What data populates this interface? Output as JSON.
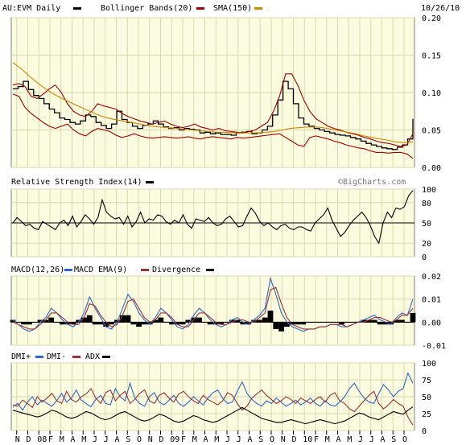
{
  "colors": {
    "background": "#ffffff",
    "plot_bg": "#fbfbe0",
    "grid": "#d8d8b0",
    "price": "#000000",
    "bollinger": "#990000",
    "sma": "#cc8800",
    "macd": "#3366cc",
    "macd_ema": "#993333",
    "divergence": "#000000",
    "dmi_plus": "#3366cc",
    "dmi_minus": "#993333",
    "adx": "#000000",
    "rsi": "#000000",
    "frame": "#808080"
  },
  "header": {
    "symbol_label": "AU:EVM Daily",
    "bollinger_label": "Bollinger Bands(20)",
    "sma_label": "SMA(150)",
    "date_label": "10/26/10",
    "watermark": "©BigCharts.com"
  },
  "chart_data": [
    {
      "type": "line",
      "panel": "price",
      "title": "AU:EVM Daily",
      "series": [
        {
          "name": "AU:EVM Daily",
          "x_start": 0.0,
          "values": [
            0.105,
            0.108,
            0.115,
            0.104,
            0.096,
            0.092,
            0.085,
            0.078,
            0.073,
            0.066,
            0.064,
            0.06,
            0.058,
            0.062,
            0.07,
            0.068,
            0.06,
            0.056,
            0.052,
            0.058,
            0.075,
            0.064,
            0.06,
            0.055,
            0.052,
            0.056,
            0.058,
            0.062,
            0.058,
            0.054,
            0.052,
            0.053,
            0.05,
            0.052,
            0.051,
            0.05,
            0.046,
            0.047,
            0.045,
            0.046,
            0.044,
            0.044,
            0.043,
            0.046,
            0.047,
            0.048,
            0.045,
            0.046,
            0.05,
            0.055,
            0.07,
            0.09,
            0.115,
            0.105,
            0.085,
            0.066,
            0.058,
            0.055,
            0.052,
            0.05,
            0.048,
            0.046,
            0.044,
            0.043,
            0.042,
            0.04,
            0.038,
            0.035,
            0.032,
            0.03,
            0.028,
            0.026,
            0.025,
            0.024,
            0.027,
            0.03,
            0.038,
            0.065
          ]
        },
        {
          "name": "Bollinger Bands(20)",
          "x_start": 0.0,
          "values": [
            0.11,
            0.112,
            0.108,
            0.095,
            0.092,
            0.098,
            0.105,
            0.11,
            0.1,
            0.085,
            0.075,
            0.07,
            0.068,
            0.075,
            0.085,
            0.082,
            0.08,
            0.078,
            0.072,
            0.068,
            0.065,
            0.062,
            0.06,
            0.058,
            0.06,
            0.062,
            0.058,
            0.055,
            0.053,
            0.055,
            0.058,
            0.054,
            0.052,
            0.05,
            0.052,
            0.049,
            0.048,
            0.047,
            0.046,
            0.048,
            0.05,
            0.055,
            0.06,
            0.075,
            0.095,
            0.125,
            0.125,
            0.11,
            0.09,
            0.075,
            0.065,
            0.06,
            0.055,
            0.052,
            0.05,
            0.047,
            0.045,
            0.043,
            0.04,
            0.038,
            0.035,
            0.033,
            0.032,
            0.03,
            0.028,
            0.03,
            0.045
          ]
        },
        {
          "name": "Bollinger Lower",
          "x_start": 0.0,
          "values": [
            0.098,
            0.095,
            0.08,
            0.072,
            0.066,
            0.06,
            0.055,
            0.052,
            0.055,
            0.058,
            0.05,
            0.045,
            0.042,
            0.048,
            0.052,
            0.05,
            0.048,
            0.043,
            0.04,
            0.042,
            0.045,
            0.042,
            0.04,
            0.039,
            0.04,
            0.041,
            0.04,
            0.039,
            0.04,
            0.041,
            0.039,
            0.038,
            0.04,
            0.041,
            0.04,
            0.039,
            0.038,
            0.04,
            0.039,
            0.04,
            0.041,
            0.042,
            0.043,
            0.044,
            0.045,
            0.04,
            0.035,
            0.03,
            0.028,
            0.04,
            0.042,
            0.04,
            0.038,
            0.035,
            0.033,
            0.03,
            0.028,
            0.026,
            0.025,
            0.022,
            0.02,
            0.02,
            0.019,
            0.02,
            0.02,
            0.018,
            0.012
          ]
        },
        {
          "name": "SMA(150)",
          "x_start": 0.0,
          "values": [
            0.14,
            0.132,
            0.122,
            0.113,
            0.105,
            0.098,
            0.092,
            0.087,
            0.082,
            0.077,
            0.072,
            0.068,
            0.065,
            0.063,
            0.061,
            0.059,
            0.057,
            0.055,
            0.054,
            0.053,
            0.052,
            0.051,
            0.05,
            0.049,
            0.048,
            0.047,
            0.047,
            0.046,
            0.046,
            0.046,
            0.046,
            0.047,
            0.048,
            0.05,
            0.052,
            0.053,
            0.054,
            0.054,
            0.053,
            0.051,
            0.049,
            0.047,
            0.045,
            0.042,
            0.04,
            0.038,
            0.036,
            0.034,
            0.033,
            0.034
          ]
        }
      ],
      "ylim": [
        0,
        0.2
      ],
      "yticks": [
        "0.00",
        "0.05",
        "0.10",
        "0.15",
        "0.20"
      ],
      "grid": true
    },
    {
      "type": "line",
      "panel": "rsi",
      "title": "Relative Strength Index(14)",
      "series": [
        {
          "name": "Relative Strength Index(14)",
          "values": [
            50,
            58,
            52,
            46,
            48,
            42,
            40,
            52,
            48,
            44,
            40,
            50,
            54,
            46,
            60,
            44,
            52,
            62,
            56,
            48,
            58,
            84,
            66,
            60,
            56,
            58,
            48,
            60,
            44,
            52,
            66,
            50,
            56,
            54,
            62,
            60,
            52,
            48,
            54,
            50,
            62,
            48,
            42,
            56,
            54,
            52,
            58,
            50,
            46,
            48,
            56,
            60,
            52,
            44,
            46,
            60,
            72,
            64,
            52,
            46,
            50,
            44,
            40,
            46,
            48,
            42,
            40,
            44,
            44,
            40,
            38,
            50,
            56,
            62,
            72,
            54,
            42,
            30,
            36,
            46,
            54,
            60,
            66,
            58,
            46,
            30,
            20,
            50,
            66,
            58,
            72,
            70,
            74,
            90,
            98
          ]
        }
      ],
      "ylim": [
        0,
        100
      ],
      "yticks": [
        "0",
        "20",
        "50",
        "80",
        "100"
      ],
      "grid": true
    },
    {
      "type": "line",
      "panel": "macd",
      "series": [
        {
          "name": "MACD(12,26)",
          "values": [
            0.001,
            -0.001,
            -0.003,
            -0.004,
            -0.003,
            0.0,
            0.002,
            0.006,
            0.004,
            0.001,
            -0.001,
            -0.002,
            0.0,
            0.004,
            0.011,
            0.006,
            0.002,
            -0.002,
            -0.003,
            0.0,
            0.006,
            0.012,
            0.009,
            0.004,
            0.001,
            -0.001,
            0.002,
            0.006,
            0.004,
            0.001,
            -0.002,
            -0.003,
            -0.001,
            0.003,
            0.006,
            0.004,
            0.001,
            -0.001,
            -0.002,
            -0.001,
            0.001,
            0.002,
            0.0,
            -0.001,
            0.001,
            0.003,
            0.006,
            0.019,
            0.012,
            0.004,
            0.0,
            -0.002,
            -0.003,
            -0.004,
            -0.003,
            -0.003,
            -0.002,
            -0.002,
            -0.001,
            -0.001,
            -0.002,
            -0.002,
            -0.001,
            0.0,
            0.001,
            0.002,
            0.003,
            0.001,
            0.0,
            -0.001,
            0.002,
            0.004,
            0.003,
            0.01
          ]
        },
        {
          "name": "MACD EMA(9)",
          "values": [
            0.0,
            -0.001,
            -0.002,
            -0.003,
            -0.003,
            -0.001,
            0.001,
            0.004,
            0.004,
            0.002,
            0.0,
            -0.001,
            -0.001,
            0.002,
            0.008,
            0.007,
            0.003,
            0.0,
            -0.002,
            -0.001,
            0.003,
            0.009,
            0.01,
            0.006,
            0.002,
            0.0,
            0.001,
            0.004,
            0.004,
            0.002,
            -0.001,
            -0.002,
            -0.002,
            0.001,
            0.004,
            0.004,
            0.002,
            0.0,
            -0.001,
            -0.001,
            0.0,
            0.001,
            0.001,
            0.0,
            0.0,
            0.002,
            0.004,
            0.014,
            0.015,
            0.008,
            0.002,
            -0.001,
            -0.002,
            -0.003,
            -0.003,
            -0.003,
            -0.002,
            -0.002,
            -0.001,
            -0.001,
            -0.001,
            -0.002,
            -0.001,
            0.0,
            0.0,
            0.001,
            0.002,
            0.002,
            0.001,
            0.0,
            0.001,
            0.003,
            0.003,
            0.006
          ]
        }
      ],
      "divergence": [
        0.001,
        0.0,
        -0.001,
        -0.001,
        0.0,
        0.001,
        0.001,
        0.002,
        0.0,
        -0.001,
        -0.001,
        -0.001,
        0.001,
        0.002,
        0.003,
        -0.001,
        -0.001,
        -0.002,
        -0.001,
        0.001,
        0.003,
        0.003,
        -0.001,
        -0.002,
        -0.001,
        -0.001,
        0.001,
        0.002,
        0.0,
        -0.001,
        -0.001,
        -0.001,
        0.001,
        0.002,
        0.002,
        0.0,
        -0.001,
        -0.001,
        -0.001,
        0.0,
        0.001,
        0.001,
        -0.001,
        -0.001,
        0.001,
        0.001,
        0.002,
        0.005,
        -0.003,
        -0.004,
        -0.002,
        -0.001,
        -0.001,
        -0.001,
        0.0,
        0.0,
        0.0,
        0.0,
        0.0,
        0.0,
        -0.001,
        0.0,
        0.0,
        0.0,
        0.001,
        0.001,
        0.001,
        -0.001,
        -0.001,
        -0.001,
        0.001,
        0.001,
        0.0,
        0.004
      ],
      "ylim": [
        -0.01,
        0.02
      ],
      "yticks": [
        "-0.01",
        "0.00",
        "0.01",
        "0.02"
      ],
      "grid": true
    },
    {
      "type": "line",
      "panel": "dmi",
      "series": [
        {
          "name": "DMI+",
          "values": [
            35,
            40,
            30,
            42,
            50,
            38,
            45,
            40,
            36,
            44,
            55,
            42,
            48,
            60,
            45,
            40,
            35,
            46,
            52,
            40,
            38,
            62,
            50,
            44,
            70,
            48,
            40,
            36,
            50,
            56,
            42,
            38,
            45,
            52,
            40,
            36,
            42,
            50,
            44,
            38,
            48,
            56,
            60,
            48,
            40,
            42,
            58,
            72,
            55,
            46,
            40,
            36,
            44,
            40,
            48,
            42,
            36,
            40,
            45,
            38,
            42,
            48,
            40,
            36,
            44,
            38,
            36,
            42,
            50,
            62,
            70,
            58,
            48,
            42,
            40,
            55,
            68,
            60,
            50,
            58,
            62,
            85,
            70
          ]
        },
        {
          "name": "DMI-",
          "values": [
            38,
            36,
            45,
            40,
            34,
            50,
            42,
            48,
            55,
            44,
            40,
            58,
            46,
            42,
            50,
            54,
            62,
            48,
            40,
            56,
            60,
            44,
            52,
            58,
            40,
            46,
            55,
            60,
            44,
            40,
            52,
            56,
            48,
            42,
            54,
            58,
            50,
            44,
            40,
            52,
            46,
            42,
            38,
            44,
            56,
            52,
            40,
            30,
            36,
            48,
            54,
            60,
            52,
            46,
            40,
            44,
            50,
            46,
            40,
            48,
            44,
            40,
            46,
            50,
            42,
            52,
            56,
            44,
            40,
            32,
            28,
            36,
            44,
            52,
            58,
            40,
            32,
            38,
            46,
            40,
            36,
            20,
            8
          ]
        },
        {
          "name": "ADX",
          "values": [
            30,
            28,
            26,
            24,
            22,
            20,
            22,
            26,
            30,
            28,
            24,
            20,
            18,
            20,
            24,
            28,
            26,
            22,
            18,
            16,
            18,
            22,
            26,
            28,
            24,
            20,
            16,
            14,
            16,
            20,
            24,
            22,
            18,
            14,
            12,
            14,
            18,
            22,
            20,
            16,
            14,
            12,
            14,
            18,
            22,
            26,
            30,
            34,
            30,
            26,
            22,
            18,
            16,
            14,
            12,
            12,
            14,
            16,
            14,
            12,
            10,
            12,
            14,
            16,
            14,
            12,
            10,
            12,
            14,
            18,
            22,
            26,
            24,
            20,
            18,
            16,
            20,
            24,
            28,
            26,
            24,
            30,
            35
          ]
        }
      ],
      "ylim": [
        0,
        100
      ],
      "yticks": [
        "0",
        "25",
        "50",
        "75",
        "100"
      ],
      "grid": true
    }
  ],
  "panels": {
    "rsi_label": "Relative Strength Index(14)",
    "macd_label": "MACD(12,26)",
    "macd_ema_label": "MACD EMA(9)",
    "divergence_label": "Divergence",
    "dmi_plus_label": "DMI+",
    "dmi_minus_label": "DMI-",
    "adx_label": "ADX"
  },
  "x_axis": {
    "labels": [
      "N",
      "D",
      "08",
      "F",
      "M",
      "A",
      "M",
      "J",
      "J",
      "A",
      "S",
      "O",
      "N",
      "D",
      "09",
      "F",
      "M",
      "A",
      "M",
      "J",
      "J",
      "A",
      "S",
      "O",
      "N",
      "D",
      "10",
      "F",
      "M",
      "A",
      "M",
      "J",
      "J",
      "A",
      "S",
      "O"
    ]
  }
}
